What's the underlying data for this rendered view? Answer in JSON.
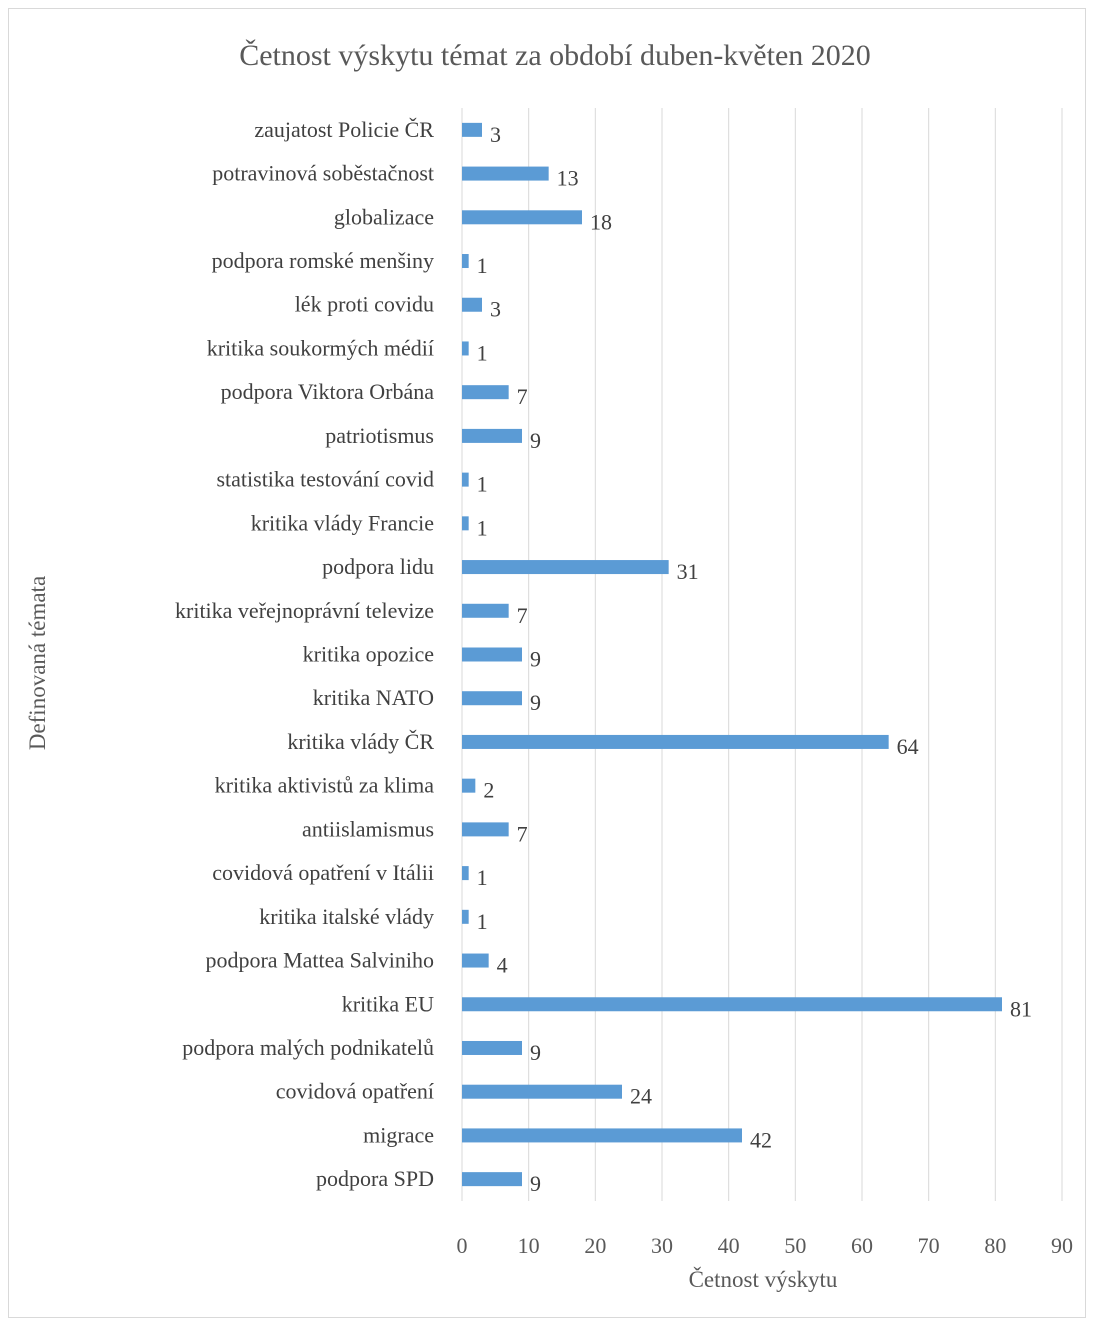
{
  "chart_data": {
    "type": "bar",
    "orientation": "horizontal",
    "title": "Četnost výskytu témat za období duben-květen 2020",
    "xlabel": "Četnost výskytu",
    "ylabel": "Definovaná témata",
    "xlim": [
      0,
      90
    ],
    "xticks": [
      "0",
      "10",
      "20",
      "30",
      "40",
      "50",
      "60",
      "70",
      "80",
      "90"
    ],
    "grid": true,
    "legend": "none",
    "bar_color": "#5b9bd5",
    "categories": [
      "zaujatost Policie ČR",
      "potravinová soběstačnost",
      "globalizace",
      "podpora romské menšiny",
      "lék proti covidu",
      "kritika soukormých médií",
      "podpora Viktora Orbána",
      "patriotismus",
      "statistika testování covid",
      "kritika vlády Francie",
      "podpora lidu",
      "kritika veřejnoprávní televize",
      "kritika opozice",
      "kritika NATO",
      "kritika vlády ČR",
      "kritika aktivistů za klima",
      "antiislamismus",
      "covidová opatření v Itálii",
      "kritika italské vlády",
      "podpora Mattea Salviniho",
      "kritika EU",
      "podpora malých podnikatelů",
      "covidová opatření",
      "migrace",
      "podpora SPD"
    ],
    "values": [
      3,
      13,
      18,
      1,
      3,
      1,
      7,
      9,
      1,
      1,
      31,
      7,
      9,
      9,
      64,
      2,
      7,
      1,
      1,
      4,
      81,
      9,
      24,
      42,
      9
    ]
  }
}
